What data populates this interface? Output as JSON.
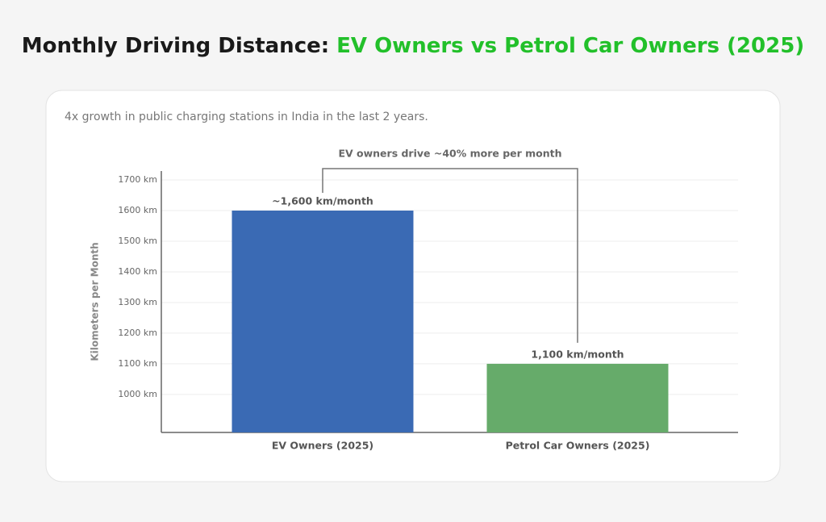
{
  "chart_data": {
    "type": "bar",
    "title": "Monthly Driving Distance:",
    "title_highlight": "EV Owners vs Petrol Car Owners (2025)",
    "title_highlight_color": "#22c02a",
    "subtitle": "4x growth in public charging stations in India in the last 2 years.",
    "annotation": "EV owners drive ~40% more per month",
    "y_label": "Kilometers per Month",
    "categories": [
      "EV Owners (2025)",
      "Petrol Car Owners (2025)"
    ],
    "values": [
      1600,
      1100
    ],
    "value_labels": [
      "~1,600 km/month",
      "1,100 km/month"
    ],
    "colors": [
      "#3a6ab4",
      "#66ab6a"
    ],
    "ylim": [
      876,
      1729
    ],
    "yticks": [
      {
        "value": 1000,
        "label": "1000 km"
      },
      {
        "value": 1100,
        "label": "1100 km"
      },
      {
        "value": 1200,
        "label": "1200 km"
      },
      {
        "value": 1300,
        "label": "1300 km"
      },
      {
        "value": 1400,
        "label": "1400 km"
      },
      {
        "value": 1500,
        "label": "1500 km"
      },
      {
        "value": 1600,
        "label": "1600 km"
      },
      {
        "value": 1700,
        "label": "1700 km"
      }
    ],
    "grid": true
  }
}
